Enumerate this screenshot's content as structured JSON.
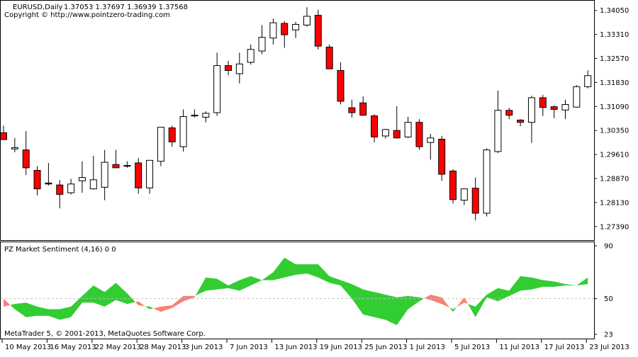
{
  "header": {
    "symbol": "EURUSD,Daily",
    "ohlc": "1.37053 1.37697 1.36939 1.37568",
    "copyright": "Copyright © http://www.pointzero-trading.com"
  },
  "indicator": {
    "title": "PZ Market Sentiment (4,16) 0 0",
    "footer": "MetaTrader 5, © 2001-2013, MetaQuotes Software Corp."
  },
  "colors": {
    "bull_fill": "#ffffff",
    "bear_fill": "#ff0000",
    "candle_outline": "#000000",
    "positive_area": "#32cd32",
    "negative_area": "#fa8072",
    "neutral_line": "#c0c0c0"
  },
  "chart_data": [
    {
      "type": "candlestick",
      "title": "EURUSD,Daily",
      "ylim": [
        1.2697,
        1.3435
      ],
      "y_ticks": [
        "1.34050",
        "1.33310",
        "1.32570",
        "1.31830",
        "1.31090",
        "1.30350",
        "1.29610",
        "1.28870",
        "1.28130",
        "1.27390"
      ],
      "x_ticks": [
        "10 May 2013",
        "16 May 2013",
        "22 May 2013",
        "28 May 2013",
        "3 Jun 2013",
        "7 Jun 2013",
        "13 Jun 2013",
        "19 Jun 2013",
        "25 Jun 2013",
        "1 Jul 2013",
        "5 Jul 2013",
        "11 Jul 2013",
        "17 Jul 2013",
        "23 Jul 2013"
      ],
      "candles": [
        {
          "open": 1.3028,
          "high": 1.305,
          "low": 1.301,
          "close": 1.3007
        },
        {
          "open": 1.2978,
          "high": 1.3012,
          "low": 1.2968,
          "close": 1.2982
        },
        {
          "open": 1.2975,
          "high": 1.3033,
          "low": 1.2898,
          "close": 1.292
        },
        {
          "open": 1.2912,
          "high": 1.2925,
          "low": 1.2835,
          "close": 1.2855
        },
        {
          "open": 1.2873,
          "high": 1.2935,
          "low": 1.2865,
          "close": 1.287
        },
        {
          "open": 1.2867,
          "high": 1.2882,
          "low": 1.2795,
          "close": 1.2838
        },
        {
          "open": 1.2843,
          "high": 1.2886,
          "low": 1.2838,
          "close": 1.287
        },
        {
          "open": 1.288,
          "high": 1.294,
          "low": 1.2843,
          "close": 1.289
        },
        {
          "open": 1.2855,
          "high": 1.2957,
          "low": 1.2853,
          "close": 1.2883
        },
        {
          "open": 1.286,
          "high": 1.2975,
          "low": 1.282,
          "close": 1.2937
        },
        {
          "open": 1.293,
          "high": 1.2975,
          "low": 1.2925,
          "close": 1.292
        },
        {
          "open": 1.2927,
          "high": 1.294,
          "low": 1.292,
          "close": 1.2927
        },
        {
          "open": 1.2935,
          "high": 1.295,
          "low": 1.284,
          "close": 1.2858
        },
        {
          "open": 1.2858,
          "high": 1.294,
          "low": 1.284,
          "close": 1.2943
        },
        {
          "open": 1.294,
          "high": 1.3045,
          "low": 1.2925,
          "close": 1.3045
        },
        {
          "open": 1.3043,
          "high": 1.305,
          "low": 1.2985,
          "close": 1.3
        },
        {
          "open": 1.2985,
          "high": 1.31,
          "low": 1.297,
          "close": 1.3078
        },
        {
          "open": 1.308,
          "high": 1.31,
          "low": 1.3075,
          "close": 1.3082
        },
        {
          "open": 1.3076,
          "high": 1.3094,
          "low": 1.306,
          "close": 1.3088
        },
        {
          "open": 1.309,
          "high": 1.3275,
          "low": 1.308,
          "close": 1.3235
        },
        {
          "open": 1.3235,
          "high": 1.325,
          "low": 1.3205,
          "close": 1.322
        },
        {
          "open": 1.321,
          "high": 1.3275,
          "low": 1.318,
          "close": 1.324
        },
        {
          "open": 1.3245,
          "high": 1.33,
          "low": 1.3238,
          "close": 1.3285
        },
        {
          "open": 1.328,
          "high": 1.336,
          "low": 1.327,
          "close": 1.3322
        },
        {
          "open": 1.332,
          "high": 1.338,
          "low": 1.33,
          "close": 1.3367
        },
        {
          "open": 1.3365,
          "high": 1.3372,
          "low": 1.329,
          "close": 1.333
        },
        {
          "open": 1.3345,
          "high": 1.337,
          "low": 1.332,
          "close": 1.3362
        },
        {
          "open": 1.336,
          "high": 1.3415,
          "low": 1.3355,
          "close": 1.3387
        },
        {
          "open": 1.339,
          "high": 1.3407,
          "low": 1.3285,
          "close": 1.3295
        },
        {
          "open": 1.3292,
          "high": 1.33,
          "low": 1.3225,
          "close": 1.3225
        },
        {
          "open": 1.322,
          "high": 1.3245,
          "low": 1.3115,
          "close": 1.3125
        },
        {
          "open": 1.3105,
          "high": 1.313,
          "low": 1.3075,
          "close": 1.309
        },
        {
          "open": 1.312,
          "high": 1.314,
          "low": 1.308,
          "close": 1.3082
        },
        {
          "open": 1.308,
          "high": 1.3085,
          "low": 1.2998,
          "close": 1.3015
        },
        {
          "open": 1.3018,
          "high": 1.304,
          "low": 1.301,
          "close": 1.3038
        },
        {
          "open": 1.3035,
          "high": 1.311,
          "low": 1.301,
          "close": 1.3012
        },
        {
          "open": 1.3015,
          "high": 1.3077,
          "low": 1.3012,
          "close": 1.306
        },
        {
          "open": 1.306,
          "high": 1.307,
          "low": 1.2975,
          "close": 1.2985
        },
        {
          "open": 1.2998,
          "high": 1.3025,
          "low": 1.2945,
          "close": 1.3012
        },
        {
          "open": 1.3008,
          "high": 1.3018,
          "low": 1.288,
          "close": 1.29
        },
        {
          "open": 1.291,
          "high": 1.2915,
          "low": 1.281,
          "close": 1.2822
        },
        {
          "open": 1.282,
          "high": 1.2855,
          "low": 1.2805,
          "close": 1.2855
        },
        {
          "open": 1.2857,
          "high": 1.289,
          "low": 1.2758,
          "close": 1.278
        },
        {
          "open": 1.278,
          "high": 1.298,
          "low": 1.277,
          "close": 1.2975
        },
        {
          "open": 1.297,
          "high": 1.3158,
          "low": 1.2965,
          "close": 1.3097
        },
        {
          "open": 1.3097,
          "high": 1.3105,
          "low": 1.307,
          "close": 1.3082
        },
        {
          "open": 1.3067,
          "high": 1.307,
          "low": 1.3048,
          "close": 1.306
        },
        {
          "open": 1.306,
          "high": 1.3142,
          "low": 1.2997,
          "close": 1.3136
        },
        {
          "open": 1.3136,
          "high": 1.3145,
          "low": 1.308,
          "close": 1.3106
        },
        {
          "open": 1.3108,
          "high": 1.3112,
          "low": 1.3073,
          "close": 1.31
        },
        {
          "open": 1.3098,
          "high": 1.313,
          "low": 1.307,
          "close": 1.3115
        },
        {
          "open": 1.3107,
          "high": 1.3175,
          "low": 1.3105,
          "close": 1.317
        },
        {
          "open": 1.317,
          "high": 1.322,
          "low": 1.3165,
          "close": 1.3204
        }
      ]
    },
    {
      "type": "area",
      "title": "PZ Market Sentiment (4,16) 0 0",
      "ylim": [
        23,
        90
      ],
      "y_ticks": [
        "90",
        "50",
        "23"
      ],
      "neutral_level": 50,
      "series": [
        {
          "values": [
            44,
            46,
            47,
            44,
            42,
            42,
            44,
            52,
            60,
            55,
            62,
            54,
            45,
            44,
            40,
            43,
            48,
            51,
            66,
            65,
            60,
            64,
            67,
            64,
            70,
            81,
            76,
            76,
            76,
            67,
            64,
            61,
            57,
            55,
            53,
            51,
            52,
            51,
            49,
            46,
            42,
            47,
            44,
            53,
            58,
            56,
            67,
            66,
            64,
            63,
            61,
            60,
            66
          ]
        },
        {
          "values": [
            50,
            42,
            36,
            37,
            37,
            34,
            36,
            47,
            47,
            44,
            49,
            46,
            48,
            42,
            44,
            45,
            52,
            52,
            56,
            57,
            58,
            56,
            60,
            64,
            64,
            66,
            68,
            69,
            66,
            62,
            60,
            50,
            38,
            36,
            34,
            30,
            42,
            48,
            53,
            51,
            40,
            51,
            36,
            51,
            48,
            52,
            56,
            57,
            59,
            59,
            60,
            60,
            61
          ]
        }
      ]
    }
  ]
}
